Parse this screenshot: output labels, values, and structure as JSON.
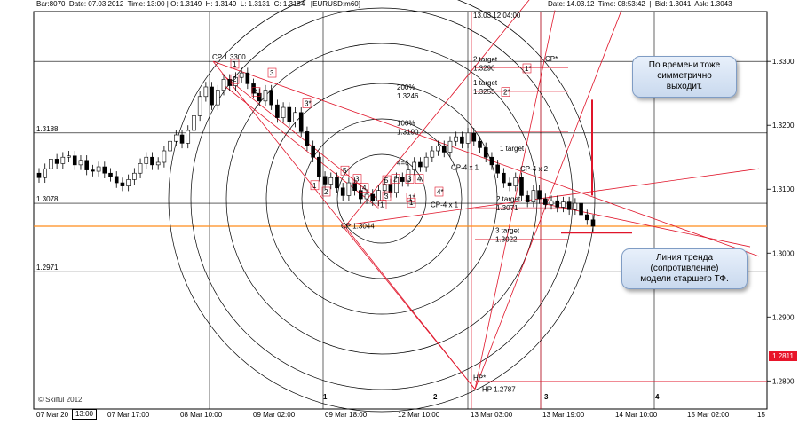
{
  "header": {
    "left": "Bar:8070  Date: 07.03.2012  Time: 13:00 | O: 1.3149  H: 1.3149  L: 1.3131  C: 1.3134   [EURUSD:m60]",
    "right": "Date: 14.03.12  Time: 08:53:42  |  Bid: 1.3041  Ask: 1.3043",
    "mid_stamp": "13.03.12 04:00"
  },
  "chart_data": {
    "type": "candlestick",
    "symbol": "EURUSD",
    "timeframe": "m60",
    "ylim": [
      1.2756,
      1.3378
    ],
    "y_ticks": [
      1.33,
      1.32,
      1.31,
      1.3,
      1.29,
      1.28
    ],
    "y_tick_labels": [
      "1.3300",
      "1.3200",
      "1.3100",
      "1.3000",
      "1.2900",
      "1.2800"
    ],
    "x_tick_labels": [
      "07 Mar 20",
      "07 Mar 17:00",
      "08 Mar 10:00",
      "09 Mar 02:00",
      "09 Mar 18:00",
      "12 Mar 10:00",
      "13 Mar 03:00",
      "13 Mar 19:00",
      "14 Mar 10:00",
      "15 Mar 02:00",
      "15"
    ],
    "left_level_labels": [
      "1.3188",
      "1.3078",
      "1.2971"
    ],
    "horizontal_levels": [
      1.3188,
      1.3078,
      1.2971,
      1.33,
      1.2811
    ],
    "support_level_orange": 1.3042,
    "price_marker": "1.2811",
    "time_marker": "13:00",
    "watermark": "© Skilful 2012",
    "close_prices": [
      1.3118,
      1.3132,
      1.3147,
      1.314,
      1.315,
      1.3152,
      1.3138,
      1.3145,
      1.313,
      1.3128,
      1.3135,
      1.3125,
      1.312,
      1.311,
      1.3105,
      1.3115,
      1.3125,
      1.314,
      1.315,
      1.3138,
      1.3142,
      1.316,
      1.3175,
      1.3185,
      1.3172,
      1.3192,
      1.3215,
      1.3245,
      1.326,
      1.3232,
      1.3255,
      1.3272,
      1.3262,
      1.3275,
      1.3282,
      1.3265,
      1.325,
      1.3238,
      1.3255,
      1.3232,
      1.3212,
      1.3228,
      1.3205,
      1.322,
      1.319,
      1.3168,
      1.315,
      1.312,
      1.3108,
      1.3118,
      1.3102,
      1.309,
      1.311,
      1.3098,
      1.3085,
      1.3092,
      1.3082,
      1.3098,
      1.3108,
      1.3095,
      1.3118,
      1.3112,
      1.313,
      1.3142,
      1.3135,
      1.315,
      1.316,
      1.3168,
      1.3158,
      1.3175,
      1.3182,
      1.3172,
      1.3188,
      1.3175,
      1.3165,
      1.315,
      1.3138,
      1.3125,
      1.311,
      1.3105,
      1.3118,
      1.309,
      1.308,
      1.3098,
      1.3085,
      1.3076,
      1.3082,
      1.3072,
      1.308,
      1.3068,
      1.3078,
      1.306,
      1.3052,
      1.3042
    ],
    "markers": [
      {
        "label": "CP",
        "value": "1.3300"
      },
      {
        "label": "CP",
        "value": "1.3044"
      },
      {
        "label": "HP",
        "value": "1.2787"
      },
      {
        "label": "HP*",
        "value": ""
      },
      {
        "label": "CP*",
        "value": ""
      },
      {
        "label": "CP-4 x 1",
        "value": ""
      },
      {
        "label": "CP-4 x 1",
        "value": ""
      },
      {
        "label": "CP-4 x 2",
        "value": ""
      },
      {
        "label": "4=6",
        "value": ""
      }
    ],
    "targets": [
      {
        "label": "2 target",
        "value": "1.3290"
      },
      {
        "label": "1 target",
        "value": "1.3253"
      },
      {
        "label": "200%",
        "value": "1.3246"
      },
      {
        "label": "100%",
        "value": "1.3190"
      },
      {
        "label": "1 target",
        "value": ""
      },
      {
        "label": "2 target",
        "value": "1.3071"
      },
      {
        "label": "3 target",
        "value": "1.3022"
      }
    ],
    "wave_labels": [
      "1",
      "2",
      "3",
      "3*",
      "4",
      "5",
      "1",
      "2",
      "3",
      "4",
      "5",
      "3",
      "1*",
      "4*",
      "2*",
      "1*",
      "1",
      "1",
      "2",
      "3",
      "4"
    ],
    "bottom_wave_ids": [
      "1",
      "2",
      "3",
      "4"
    ],
    "grid": true
  },
  "annotations": {
    "callout_top": [
      "По времени тоже",
      "симметрично",
      "выходит."
    ],
    "callout_bottom": [
      "Линия тренда",
      "(сопротивление)",
      "модели старшего ТФ."
    ]
  },
  "colors": {
    "candle_up": "#ffffff",
    "candle_down": "#000000",
    "red_lines": "#e0152a",
    "orange_level": "#ff8c1a",
    "grid": "#000000",
    "badge": "#e8152a"
  }
}
